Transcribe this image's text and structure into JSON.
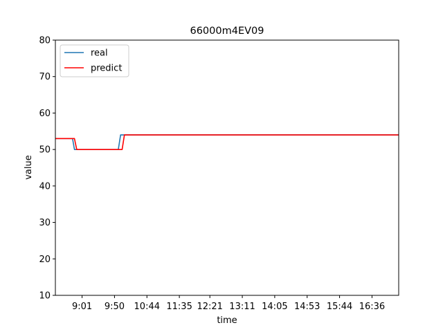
{
  "chart_data": {
    "type": "line",
    "title": "66000m4EV09",
    "xlabel": "time",
    "ylabel": "value",
    "ylim": [
      10,
      80
    ],
    "yticks": [
      10,
      20,
      30,
      40,
      50,
      60,
      70,
      80
    ],
    "xlim": [
      0,
      180
    ],
    "xticks": [
      {
        "pos": 14,
        "label": "9:01"
      },
      {
        "pos": 31,
        "label": "9:50"
      },
      {
        "pos": 48,
        "label": "10:44"
      },
      {
        "pos": 65,
        "label": "11:35"
      },
      {
        "pos": 81,
        "label": "12:21"
      },
      {
        "pos": 98,
        "label": "13:11"
      },
      {
        "pos": 115,
        "label": "14:05"
      },
      {
        "pos": 132,
        "label": "14:53"
      },
      {
        "pos": 149,
        "label": "15:44"
      },
      {
        "pos": 166,
        "label": "16:36"
      }
    ],
    "grid": false,
    "legend_position": "top-left",
    "series": [
      {
        "name": "real",
        "color": "#1f77b4",
        "points": [
          [
            0,
            53
          ],
          [
            9,
            53
          ],
          [
            10,
            50
          ],
          [
            33,
            50
          ],
          [
            34.2,
            54
          ],
          [
            180,
            54
          ]
        ]
      },
      {
        "name": "predict",
        "color": "#ff0000",
        "points": [
          [
            0,
            53
          ],
          [
            10,
            53
          ],
          [
            11.2,
            50
          ],
          [
            35,
            50
          ],
          [
            36.2,
            54
          ],
          [
            180,
            54
          ]
        ]
      }
    ]
  }
}
